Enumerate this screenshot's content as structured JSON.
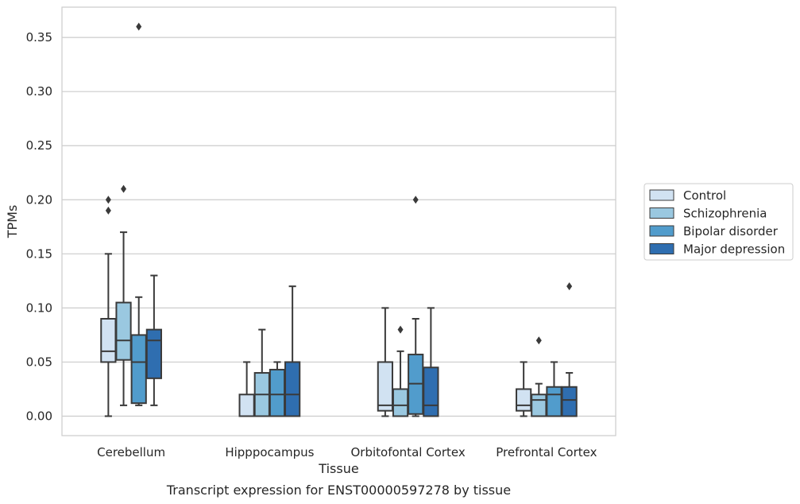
{
  "chart_data": {
    "type": "box",
    "title": "",
    "caption": "Transcript expression for ENST00000597278 by tissue",
    "xlabel": "Tissue",
    "ylabel": "TPMs",
    "ylim": [
      -0.018,
      0.378
    ],
    "yticks": [
      "0.00",
      "0.05",
      "0.10",
      "0.15",
      "0.20",
      "0.25",
      "0.30",
      "0.35"
    ],
    "grid": "horizontal",
    "legend_position": "right",
    "categories": [
      "Cerebellum",
      "Hipppocampus",
      "Orbitofontal Cortex",
      "Prefrontal Cortex"
    ],
    "series": [
      {
        "name": "Control",
        "color": "#d1e2f2",
        "boxes": [
          {
            "min": 0.0,
            "q1": 0.05,
            "median": 0.06,
            "q3": 0.09,
            "max": 0.15,
            "outliers": [
              0.19,
              0.2
            ]
          },
          {
            "min": 0.0,
            "q1": 0.0,
            "median": 0.0,
            "q3": 0.02,
            "max": 0.05,
            "outliers": []
          },
          {
            "min": 0.0,
            "q1": 0.005,
            "median": 0.01,
            "q3": 0.05,
            "max": 0.1,
            "outliers": []
          },
          {
            "min": 0.0,
            "q1": 0.005,
            "median": 0.01,
            "q3": 0.025,
            "max": 0.05,
            "outliers": []
          }
        ]
      },
      {
        "name": "Schizophrenia",
        "color": "#9ac8e0",
        "boxes": [
          {
            "min": 0.01,
            "q1": 0.052,
            "median": 0.07,
            "q3": 0.105,
            "max": 0.17,
            "outliers": [
              0.21
            ]
          },
          {
            "min": 0.0,
            "q1": 0.0,
            "median": 0.02,
            "q3": 0.04,
            "max": 0.08,
            "outliers": []
          },
          {
            "min": 0.0,
            "q1": 0.0,
            "median": 0.01,
            "q3": 0.025,
            "max": 0.06,
            "outliers": [
              0.08
            ]
          },
          {
            "min": 0.0,
            "q1": 0.0,
            "median": 0.015,
            "q3": 0.02,
            "max": 0.03,
            "outliers": [
              0.07
            ]
          }
        ]
      },
      {
        "name": "Bipolar disorder",
        "color": "#519ccc",
        "boxes": [
          {
            "min": 0.01,
            "q1": 0.012,
            "median": 0.05,
            "q3": 0.075,
            "max": 0.11,
            "outliers": [
              0.36
            ]
          },
          {
            "min": 0.0,
            "q1": 0.0,
            "median": 0.02,
            "q3": 0.043,
            "max": 0.05,
            "outliers": []
          },
          {
            "min": 0.0,
            "q1": 0.002,
            "median": 0.03,
            "q3": 0.057,
            "max": 0.09,
            "outliers": [
              0.2
            ]
          },
          {
            "min": 0.0,
            "q1": 0.0,
            "median": 0.02,
            "q3": 0.027,
            "max": 0.05,
            "outliers": []
          }
        ]
      },
      {
        "name": "Major depression",
        "color": "#2f6eb0",
        "boxes": [
          {
            "min": 0.01,
            "q1": 0.035,
            "median": 0.07,
            "q3": 0.08,
            "max": 0.13,
            "outliers": []
          },
          {
            "min": 0.0,
            "q1": 0.0,
            "median": 0.02,
            "q3": 0.05,
            "max": 0.12,
            "outliers": []
          },
          {
            "min": 0.0,
            "q1": 0.0,
            "median": 0.01,
            "q3": 0.045,
            "max": 0.1,
            "outliers": []
          },
          {
            "min": 0.0,
            "q1": 0.0,
            "median": 0.015,
            "q3": 0.027,
            "max": 0.04,
            "outliers": [
              0.12
            ]
          }
        ]
      }
    ]
  }
}
